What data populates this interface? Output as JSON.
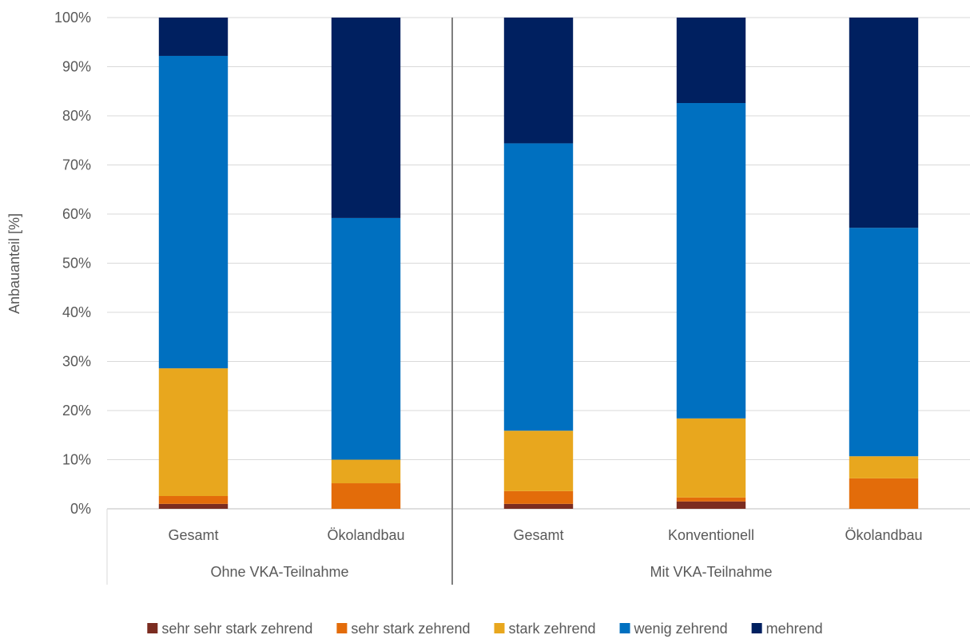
{
  "chart_data": {
    "type": "bar",
    "stacked": true,
    "percent_stacked": true,
    "title": "",
    "ylabel": "Anbauanteil [%]",
    "xlabel": "",
    "ylim": [
      0,
      100
    ],
    "yticks": [
      "0%",
      "10%",
      "20%",
      "30%",
      "40%",
      "50%",
      "60%",
      "70%",
      "80%",
      "90%",
      "100%"
    ],
    "grid": true,
    "legend_position": "bottom",
    "groups": [
      {
        "label": "Ohne VKA-Teilnahme",
        "categories": [
          "Gesamt",
          "Ökolandbau"
        ]
      },
      {
        "label": "Mit VKA-Teilnahme",
        "categories": [
          "Gesamt",
          "Konventionell",
          "Ökolandbau"
        ]
      }
    ],
    "categories": [
      "Gesamt",
      "Ökolandbau",
      "Gesamt",
      "Konventionell",
      "Ökolandbau"
    ],
    "series": [
      {
        "name": "sehr sehr stark zehrend",
        "color": "#7B2C20",
        "values": [
          1.0,
          0.0,
          1.0,
          1.5,
          0.0
        ]
      },
      {
        "name": "sehr stark zehrend",
        "color": "#E36C0A",
        "values": [
          1.6,
          5.2,
          2.6,
          0.8,
          6.2
        ]
      },
      {
        "name": "stark zehrend",
        "color": "#E8A71E",
        "values": [
          26.0,
          4.8,
          12.3,
          16.1,
          4.5
        ]
      },
      {
        "name": "wenig zehrend",
        "color": "#0070C0",
        "values": [
          63.6,
          49.2,
          58.5,
          64.2,
          46.5
        ]
      },
      {
        "name": "mehrend",
        "color": "#002060",
        "values": [
          7.8,
          40.8,
          25.6,
          17.4,
          42.8
        ]
      }
    ]
  }
}
